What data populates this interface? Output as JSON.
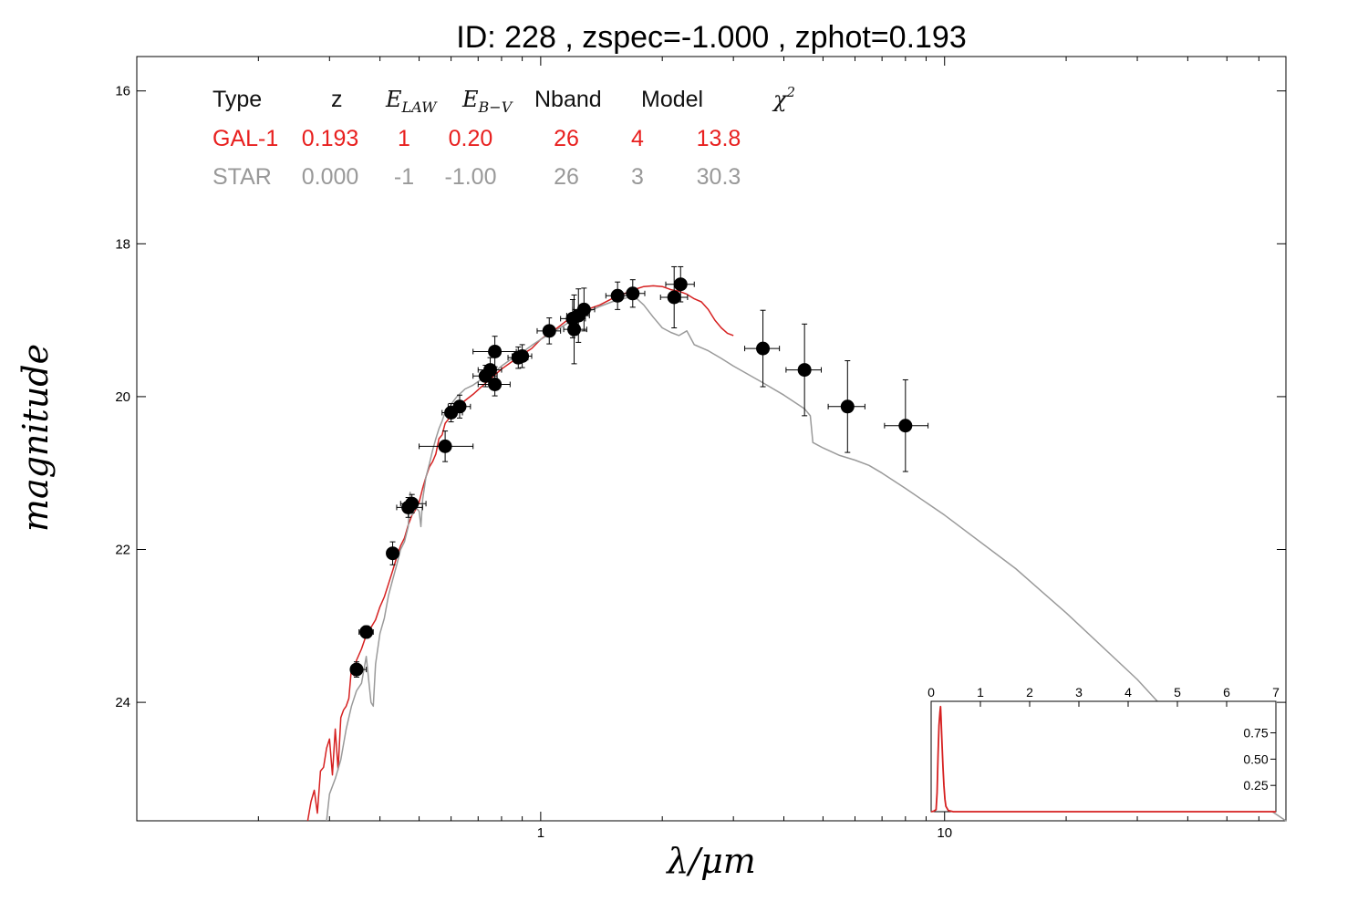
{
  "title": "ID:  228   , zspec=-1.000 , zphot=0.193",
  "chart_data": {
    "type": "scatter",
    "xlabel": "λ/μm",
    "ylabel": "magnitude",
    "xscale": "log",
    "xlim": [
      0.1,
      70
    ],
    "ylim": [
      25.55,
      15.55
    ],
    "y_inverted": true,
    "x_ticks": [
      {
        "value": 1,
        "label": "1"
      },
      {
        "value": 10,
        "label": "10"
      }
    ],
    "y_ticks": [
      {
        "value": 16,
        "label": "16"
      },
      {
        "value": 18,
        "label": "18"
      },
      {
        "value": 20,
        "label": "20"
      },
      {
        "value": 22,
        "label": "22"
      },
      {
        "value": 24,
        "label": "24"
      }
    ],
    "grid": false,
    "table": {
      "headers": [
        "Type",
        "z",
        "E_LAW",
        "E_B−V",
        "Nband",
        "Model",
        "χ²"
      ],
      "rows": [
        {
          "cells": [
            "GAL-1",
            "0.193",
            "1",
            "0.20",
            "26",
            "4",
            "13.8"
          ],
          "color": "#e8201f"
        },
        {
          "cells": [
            "STAR",
            "0.000",
            "-1",
            "-1.00",
            "26",
            "3",
            "30.3"
          ],
          "color": "#999999"
        }
      ]
    },
    "points": [
      {
        "x": 0.35,
        "y": 23.57,
        "xerr": [
          0.34,
          0.37
        ],
        "yerr": 0.1
      },
      {
        "x": 0.37,
        "y": 23.08,
        "xerr": [
          0.355,
          0.385
        ],
        "yerr": 0.08
      },
      {
        "x": 0.43,
        "y": 22.05,
        "xerr": [
          0.42,
          0.44
        ],
        "yerr": 0.15
      },
      {
        "x": 0.47,
        "y": 21.45,
        "xerr": [
          0.44,
          0.51
        ],
        "yerr": 0.13
      },
      {
        "x": 0.48,
        "y": 21.4,
        "xerr": [
          0.45,
          0.52
        ],
        "yerr": 0.12
      },
      {
        "x": 0.58,
        "y": 20.65,
        "xerr": [
          0.5,
          0.68
        ],
        "yerr": 0.2
      },
      {
        "x": 0.6,
        "y": 20.21,
        "xerr": [
          0.57,
          0.64
        ],
        "yerr": 0.12
      },
      {
        "x": 0.63,
        "y": 20.13,
        "xerr": [
          0.59,
          0.67
        ],
        "yerr": 0.15
      },
      {
        "x": 0.73,
        "y": 19.73,
        "xerr": [
          0.68,
          0.78
        ],
        "yerr": 0.14
      },
      {
        "x": 0.75,
        "y": 19.65,
        "xerr": [
          0.7,
          0.8
        ],
        "yerr": 0.16
      },
      {
        "x": 0.77,
        "y": 19.41,
        "xerr": [
          0.68,
          0.87
        ],
        "yerr": 0.2
      },
      {
        "x": 0.77,
        "y": 19.84,
        "xerr": [
          0.7,
          0.84
        ],
        "yerr": 0.15
      },
      {
        "x": 0.88,
        "y": 19.49,
        "xerr": [
          0.83,
          0.93
        ],
        "yerr": 0.14
      },
      {
        "x": 0.9,
        "y": 19.47,
        "xerr": [
          0.85,
          0.95
        ],
        "yerr": 0.15
      },
      {
        "x": 1.05,
        "y": 19.14,
        "xerr": [
          0.98,
          1.12
        ],
        "yerr": 0.17
      },
      {
        "x": 1.2,
        "y": 18.98,
        "xerr": [
          1.12,
          1.29
        ],
        "yerr": 0.25
      },
      {
        "x": 1.21,
        "y": 19.12,
        "xerr": [
          1.14,
          1.3
        ],
        "yerr": 0.45
      },
      {
        "x": 1.24,
        "y": 18.94,
        "xerr": [
          1.16,
          1.32
        ],
        "yerr": 0.35
      },
      {
        "x": 1.28,
        "y": 18.86,
        "xerr": [
          1.2,
          1.36
        ],
        "yerr": 0.28
      },
      {
        "x": 1.55,
        "y": 18.68,
        "xerr": [
          1.45,
          1.66
        ],
        "yerr": 0.18
      },
      {
        "x": 1.69,
        "y": 18.65,
        "xerr": [
          1.58,
          1.81
        ],
        "yerr": 0.18
      },
      {
        "x": 2.14,
        "y": 18.7,
        "xerr": [
          1.98,
          2.31
        ],
        "yerr": 0.4
      },
      {
        "x": 2.22,
        "y": 18.53,
        "xerr": [
          2.04,
          2.4
        ],
        "yerr": 0.23
      },
      {
        "x": 3.55,
        "y": 19.37,
        "xerr": [
          3.2,
          3.9
        ],
        "yerr": 0.5
      },
      {
        "x": 4.5,
        "y": 19.65,
        "xerr": [
          4.05,
          4.95
        ],
        "yerr": 0.6
      },
      {
        "x": 5.75,
        "y": 20.13,
        "xerr": [
          5.15,
          6.35
        ],
        "yerr": 0.6
      },
      {
        "x": 8.0,
        "y": 20.38,
        "xerr": [
          7.1,
          9.1
        ],
        "yerr": 0.6
      }
    ],
    "series": [
      {
        "color": "#d62020",
        "points": [
          [
            0.265,
            25.55
          ],
          [
            0.27,
            25.3
          ],
          [
            0.275,
            25.15
          ],
          [
            0.28,
            25.45
          ],
          [
            0.285,
            24.9
          ],
          [
            0.29,
            24.85
          ],
          [
            0.295,
            24.6
          ],
          [
            0.3,
            24.48
          ],
          [
            0.305,
            24.95
          ],
          [
            0.31,
            24.35
          ],
          [
            0.315,
            24.88
          ],
          [
            0.32,
            24.2
          ],
          [
            0.325,
            24.1
          ],
          [
            0.33,
            24.05
          ],
          [
            0.335,
            23.95
          ],
          [
            0.34,
            23.55
          ],
          [
            0.345,
            23.65
          ],
          [
            0.35,
            23.45
          ],
          [
            0.36,
            23.3
          ],
          [
            0.37,
            23.12
          ],
          [
            0.38,
            23.02
          ],
          [
            0.39,
            22.92
          ],
          [
            0.4,
            22.75
          ],
          [
            0.41,
            22.62
          ],
          [
            0.42,
            22.45
          ],
          [
            0.43,
            22.28
          ],
          [
            0.44,
            22.1
          ],
          [
            0.45,
            21.95
          ],
          [
            0.46,
            21.85
          ],
          [
            0.47,
            21.68
          ],
          [
            0.48,
            21.55
          ],
          [
            0.49,
            21.48
          ],
          [
            0.5,
            21.38
          ],
          [
            0.51,
            21.2
          ],
          [
            0.52,
            21.05
          ],
          [
            0.53,
            20.92
          ],
          [
            0.54,
            20.85
          ],
          [
            0.55,
            20.75
          ],
          [
            0.56,
            20.55
          ],
          [
            0.57,
            20.5
          ],
          [
            0.58,
            20.35
          ],
          [
            0.6,
            20.25
          ],
          [
            0.62,
            20.15
          ],
          [
            0.65,
            20.05
          ],
          [
            0.68,
            19.97
          ],
          [
            0.71,
            19.88
          ],
          [
            0.75,
            19.77
          ],
          [
            0.8,
            19.64
          ],
          [
            0.85,
            19.54
          ],
          [
            0.9,
            19.45
          ],
          [
            0.95,
            19.37
          ],
          [
            1.0,
            19.25
          ],
          [
            1.05,
            19.17
          ],
          [
            1.1,
            19.1
          ],
          [
            1.15,
            19.02
          ],
          [
            1.2,
            18.95
          ],
          [
            1.3,
            18.86
          ],
          [
            1.4,
            18.8
          ],
          [
            1.5,
            18.72
          ],
          [
            1.6,
            18.66
          ],
          [
            1.7,
            18.6
          ],
          [
            1.8,
            18.56
          ],
          [
            1.9,
            18.55
          ],
          [
            2.0,
            18.56
          ],
          [
            2.1,
            18.6
          ],
          [
            2.2,
            18.62
          ],
          [
            2.3,
            18.66
          ],
          [
            2.4,
            18.72
          ],
          [
            2.5,
            18.76
          ],
          [
            2.6,
            18.86
          ],
          [
            2.7,
            19.0
          ],
          [
            2.8,
            19.1
          ],
          [
            2.9,
            19.17
          ],
          [
            3.0,
            19.2
          ]
        ]
      },
      {
        "color": "#9a9a9a",
        "points": [
          [
            0.295,
            25.55
          ],
          [
            0.3,
            25.2
          ],
          [
            0.31,
            25.0
          ],
          [
            0.32,
            24.75
          ],
          [
            0.33,
            24.35
          ],
          [
            0.34,
            24.05
          ],
          [
            0.35,
            23.85
          ],
          [
            0.36,
            23.75
          ],
          [
            0.37,
            23.4
          ],
          [
            0.38,
            24.0
          ],
          [
            0.385,
            24.05
          ],
          [
            0.39,
            23.5
          ],
          [
            0.4,
            23.1
          ],
          [
            0.41,
            22.9
          ],
          [
            0.42,
            22.6
          ],
          [
            0.43,
            22.4
          ],
          [
            0.44,
            22.2
          ],
          [
            0.45,
            22.0
          ],
          [
            0.46,
            21.9
          ],
          [
            0.47,
            21.7
          ],
          [
            0.475,
            21.25
          ],
          [
            0.48,
            21.55
          ],
          [
            0.49,
            21.45
          ],
          [
            0.5,
            21.5
          ],
          [
            0.505,
            21.7
          ],
          [
            0.51,
            21.35
          ],
          [
            0.52,
            21.05
          ],
          [
            0.53,
            20.88
          ],
          [
            0.54,
            20.7
          ],
          [
            0.55,
            20.55
          ],
          [
            0.56,
            20.42
          ],
          [
            0.57,
            20.32
          ],
          [
            0.58,
            20.2
          ],
          [
            0.6,
            20.1
          ],
          [
            0.62,
            20.0
          ],
          [
            0.65,
            19.9
          ],
          [
            0.68,
            19.85
          ],
          [
            0.71,
            19.78
          ],
          [
            0.75,
            19.72
          ],
          [
            0.8,
            19.6
          ],
          [
            0.85,
            19.5
          ],
          [
            0.9,
            19.42
          ],
          [
            0.95,
            19.33
          ],
          [
            1.0,
            19.25
          ],
          [
            1.1,
            19.12
          ],
          [
            1.2,
            19.0
          ],
          [
            1.3,
            18.9
          ],
          [
            1.4,
            18.82
          ],
          [
            1.5,
            18.76
          ],
          [
            1.6,
            18.72
          ],
          [
            1.7,
            18.68
          ],
          [
            1.8,
            18.8
          ],
          [
            1.9,
            18.96
          ],
          [
            2.0,
            19.1
          ],
          [
            2.1,
            19.16
          ],
          [
            2.2,
            19.2
          ],
          [
            2.3,
            19.14
          ],
          [
            2.4,
            19.32
          ],
          [
            2.6,
            19.4
          ],
          [
            2.8,
            19.5
          ],
          [
            3.0,
            19.6
          ],
          [
            3.5,
            19.8
          ],
          [
            4.0,
            19.98
          ],
          [
            4.5,
            20.16
          ],
          [
            4.65,
            20.25
          ],
          [
            4.72,
            20.6
          ],
          [
            5.0,
            20.67
          ],
          [
            5.5,
            20.77
          ],
          [
            6.0,
            20.83
          ],
          [
            6.5,
            20.9
          ],
          [
            7.0,
            21.0
          ],
          [
            8.0,
            21.2
          ],
          [
            10.0,
            21.55
          ],
          [
            15.0,
            22.25
          ],
          [
            20.0,
            22.83
          ],
          [
            30.0,
            23.7
          ],
          [
            40.0,
            24.42
          ],
          [
            55.0,
            25.18
          ],
          [
            70.0,
            25.55
          ]
        ]
      }
    ],
    "inset": {
      "type": "line",
      "xlim": [
        0,
        7
      ],
      "ylim": [
        0,
        1.05
      ],
      "x_ticks": [
        {
          "value": 0,
          "label": "0"
        },
        {
          "value": 1,
          "label": "1"
        },
        {
          "value": 2,
          "label": "2"
        },
        {
          "value": 3,
          "label": "3"
        },
        {
          "value": 4,
          "label": "4"
        },
        {
          "value": 5,
          "label": "5"
        },
        {
          "value": 6,
          "label": "6"
        },
        {
          "value": 7,
          "label": "7"
        }
      ],
      "y_ticks": [
        {
          "value": 0.25,
          "label": "0.25"
        },
        {
          "value": 0.5,
          "label": "0.50"
        },
        {
          "value": 0.75,
          "label": "0.75"
        }
      ],
      "color": "#d62020",
      "points": [
        [
          0,
          0
        ],
        [
          0.05,
          0.004
        ],
        [
          0.1,
          0.02
        ],
        [
          0.12,
          0.18
        ],
        [
          0.14,
          0.55
        ],
        [
          0.16,
          0.82
        ],
        [
          0.18,
          0.95
        ],
        [
          0.19,
          1.0
        ],
        [
          0.2,
          0.9
        ],
        [
          0.22,
          0.65
        ],
        [
          0.24,
          0.42
        ],
        [
          0.26,
          0.25
        ],
        [
          0.28,
          0.12
        ],
        [
          0.3,
          0.05
        ],
        [
          0.35,
          0.01
        ],
        [
          0.45,
          0.0
        ],
        [
          7.0,
          0.0
        ]
      ]
    }
  }
}
